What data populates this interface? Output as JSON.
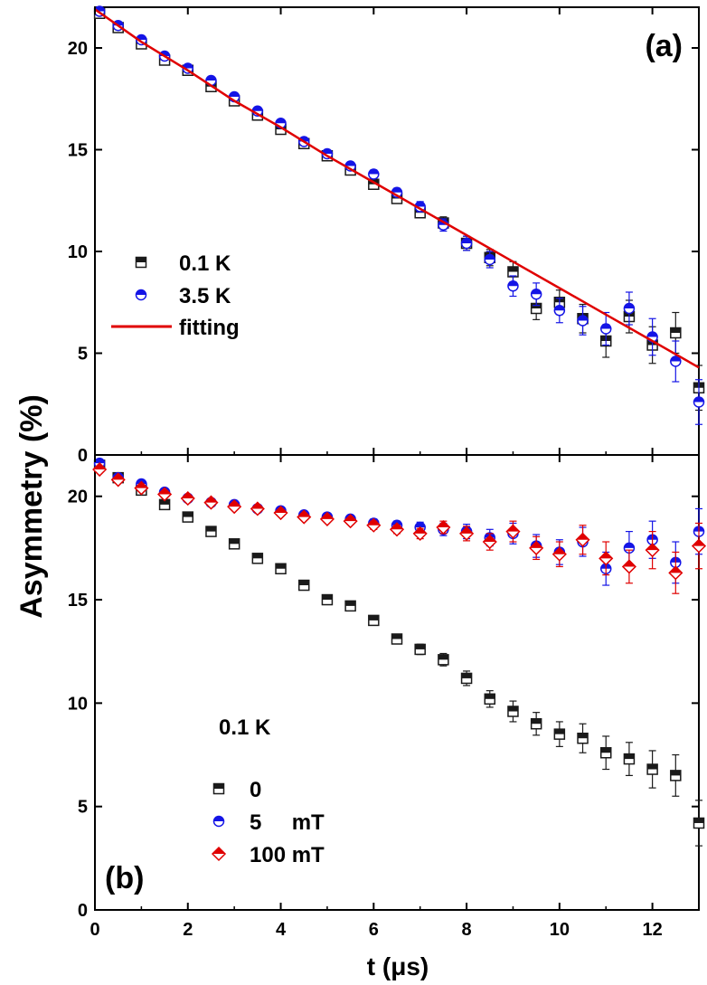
{
  "chart_data": {
    "type": "scatter",
    "ylabel": "Asymmetry (%)",
    "xlabel": "t (μs)",
    "xlim": [
      0,
      13
    ],
    "x_ticks": [
      0,
      2,
      4,
      6,
      8,
      10,
      12
    ],
    "x_tick_labels": [
      "0",
      "2",
      "4",
      "6",
      "8",
      "10",
      "12"
    ],
    "panels": [
      {
        "label": "(a)",
        "ylim": [
          0,
          22
        ],
        "y_ticks": [
          0,
          5,
          10,
          15,
          20
        ],
        "y_tick_labels": [
          "0",
          "5",
          "10",
          "15",
          "20"
        ],
        "legend_position": "middle-left",
        "series": [
          {
            "name": "0.1 K",
            "marker": "square",
            "color": "#1a1a1a",
            "x": [
              0.1,
              0.5,
              1.0,
              1.5,
              2.0,
              2.5,
              3.0,
              3.5,
              4.0,
              4.5,
              5.0,
              5.5,
              6.0,
              6.5,
              7.0,
              7.5,
              8.0,
              8.5,
              9.0,
              9.5,
              10.0,
              10.5,
              11.0,
              11.5,
              12.0,
              12.5,
              13.0
            ],
            "y": [
              21.7,
              21.0,
              20.2,
              19.4,
              18.9,
              18.1,
              17.4,
              16.7,
              16.0,
              15.3,
              14.7,
              14.0,
              13.3,
              12.6,
              11.9,
              11.4,
              10.4,
              9.7,
              9.0,
              7.2,
              7.5,
              6.7,
              5.6,
              6.8,
              5.4,
              6.0,
              3.3
            ],
            "err": [
              0.1,
              0.1,
              0.1,
              0.1,
              0.1,
              0.1,
              0.1,
              0.1,
              0.1,
              0.1,
              0.15,
              0.15,
              0.2,
              0.2,
              0.25,
              0.3,
              0.35,
              0.4,
              0.5,
              0.55,
              0.6,
              0.7,
              0.8,
              0.8,
              0.9,
              1.0,
              1.1
            ]
          },
          {
            "name": "3.5 K",
            "marker": "half-circle",
            "color": "#1414e6",
            "x": [
              0.1,
              0.5,
              1.0,
              1.5,
              2.0,
              2.5,
              3.0,
              3.5,
              4.0,
              4.5,
              5.0,
              5.5,
              6.0,
              6.5,
              7.0,
              7.5,
              8.0,
              8.5,
              9.0,
              9.5,
              10.0,
              10.5,
              11.0,
              11.5,
              12.0,
              12.5,
              13.0
            ],
            "y": [
              21.8,
              21.1,
              20.4,
              19.6,
              19.0,
              18.4,
              17.6,
              16.9,
              16.3,
              15.4,
              14.8,
              14.2,
              13.8,
              12.9,
              12.2,
              11.3,
              10.4,
              9.6,
              8.3,
              7.9,
              7.1,
              6.6,
              6.2,
              7.2,
              5.8,
              4.6,
              2.6
            ],
            "err": [
              0.1,
              0.1,
              0.1,
              0.1,
              0.1,
              0.1,
              0.1,
              0.1,
              0.1,
              0.1,
              0.15,
              0.15,
              0.2,
              0.2,
              0.25,
              0.3,
              0.35,
              0.4,
              0.5,
              0.55,
              0.6,
              0.7,
              0.8,
              0.8,
              0.9,
              1.0,
              1.1
            ]
          },
          {
            "name": "fitting",
            "marker": "line",
            "color": "#e00000",
            "x": [
              0,
              1,
              2,
              3,
              4,
              5,
              6,
              7,
              8,
              9,
              10,
              11,
              12,
              13
            ],
            "y": [
              21.9,
              20.3,
              18.9,
              17.4,
              16.1,
              14.7,
              13.4,
              12.1,
              10.8,
              9.5,
              8.2,
              6.9,
              5.6,
              4.3
            ]
          }
        ]
      },
      {
        "label": "(b)",
        "ylim": [
          0,
          22
        ],
        "y_ticks": [
          0,
          5,
          10,
          15,
          20
        ],
        "y_tick_labels": [
          "0",
          "5",
          "10",
          "15",
          "20"
        ],
        "legend_position": "bottom-left",
        "legend_title": "0.1 K",
        "series": [
          {
            "name": "0",
            "marker": "square",
            "color": "#1a1a1a",
            "x": [
              0.1,
              0.5,
              1.0,
              1.5,
              2.0,
              2.5,
              3.0,
              3.5,
              4.0,
              4.5,
              5.0,
              5.5,
              6.0,
              6.5,
              7.0,
              7.5,
              8.0,
              8.5,
              9.0,
              9.5,
              10.0,
              10.5,
              11.0,
              11.5,
              12.0,
              12.5,
              13.0
            ],
            "y": [
              21.5,
              20.9,
              20.3,
              19.6,
              19.0,
              18.3,
              17.7,
              17.0,
              16.5,
              15.7,
              15.0,
              14.7,
              14.0,
              13.1,
              12.6,
              12.1,
              11.2,
              10.2,
              9.6,
              9.0,
              8.5,
              8.3,
              7.6,
              7.3,
              6.8,
              6.5,
              4.2
            ],
            "err": [
              0.1,
              0.1,
              0.1,
              0.1,
              0.1,
              0.1,
              0.1,
              0.1,
              0.1,
              0.1,
              0.15,
              0.15,
              0.2,
              0.2,
              0.25,
              0.3,
              0.35,
              0.4,
              0.5,
              0.55,
              0.6,
              0.7,
              0.8,
              0.8,
              0.9,
              1.0,
              1.1
            ]
          },
          {
            "name": "5     mT",
            "marker": "half-circle",
            "color": "#1414e6",
            "x": [
              0.1,
              0.5,
              1.0,
              1.5,
              2.0,
              2.5,
              3.0,
              3.5,
              4.0,
              4.5,
              5.0,
              5.5,
              6.0,
              6.5,
              7.0,
              7.5,
              8.0,
              8.5,
              9.0,
              9.5,
              10.0,
              10.5,
              11.0,
              11.5,
              12.0,
              12.5,
              13.0
            ],
            "y": [
              21.6,
              20.9,
              20.6,
              20.2,
              19.9,
              19.7,
              19.6,
              19.4,
              19.3,
              19.1,
              19.0,
              18.9,
              18.7,
              18.6,
              18.5,
              18.4,
              18.3,
              18.0,
              18.2,
              17.6,
              17.3,
              17.8,
              16.5,
              17.5,
              17.9,
              16.8,
              18.3
            ],
            "err": [
              0.1,
              0.1,
              0.1,
              0.1,
              0.1,
              0.1,
              0.1,
              0.1,
              0.1,
              0.1,
              0.15,
              0.15,
              0.2,
              0.2,
              0.25,
              0.3,
              0.35,
              0.4,
              0.5,
              0.55,
              0.6,
              0.7,
              0.8,
              0.8,
              0.9,
              1.0,
              1.1
            ]
          },
          {
            "name": "100 mT",
            "marker": "diamond",
            "color": "#e00000",
            "x": [
              0.1,
              0.5,
              1.0,
              1.5,
              2.0,
              2.5,
              3.0,
              3.5,
              4.0,
              4.5,
              5.0,
              5.5,
              6.0,
              6.5,
              7.0,
              7.5,
              8.0,
              8.5,
              9.0,
              9.5,
              10.0,
              10.5,
              11.0,
              11.5,
              12.0,
              12.5,
              13.0
            ],
            "y": [
              21.3,
              20.8,
              20.4,
              20.1,
              19.9,
              19.7,
              19.5,
              19.4,
              19.2,
              19.0,
              18.9,
              18.8,
              18.6,
              18.4,
              18.2,
              18.5,
              18.2,
              17.8,
              18.3,
              17.5,
              17.2,
              17.9,
              17.0,
              16.6,
              17.4,
              16.3,
              17.6
            ],
            "err": [
              0.1,
              0.1,
              0.1,
              0.1,
              0.1,
              0.1,
              0.1,
              0.1,
              0.1,
              0.1,
              0.15,
              0.15,
              0.2,
              0.2,
              0.25,
              0.3,
              0.35,
              0.4,
              0.5,
              0.55,
              0.6,
              0.7,
              0.8,
              0.8,
              0.9,
              1.0,
              1.1
            ]
          }
        ]
      }
    ]
  }
}
